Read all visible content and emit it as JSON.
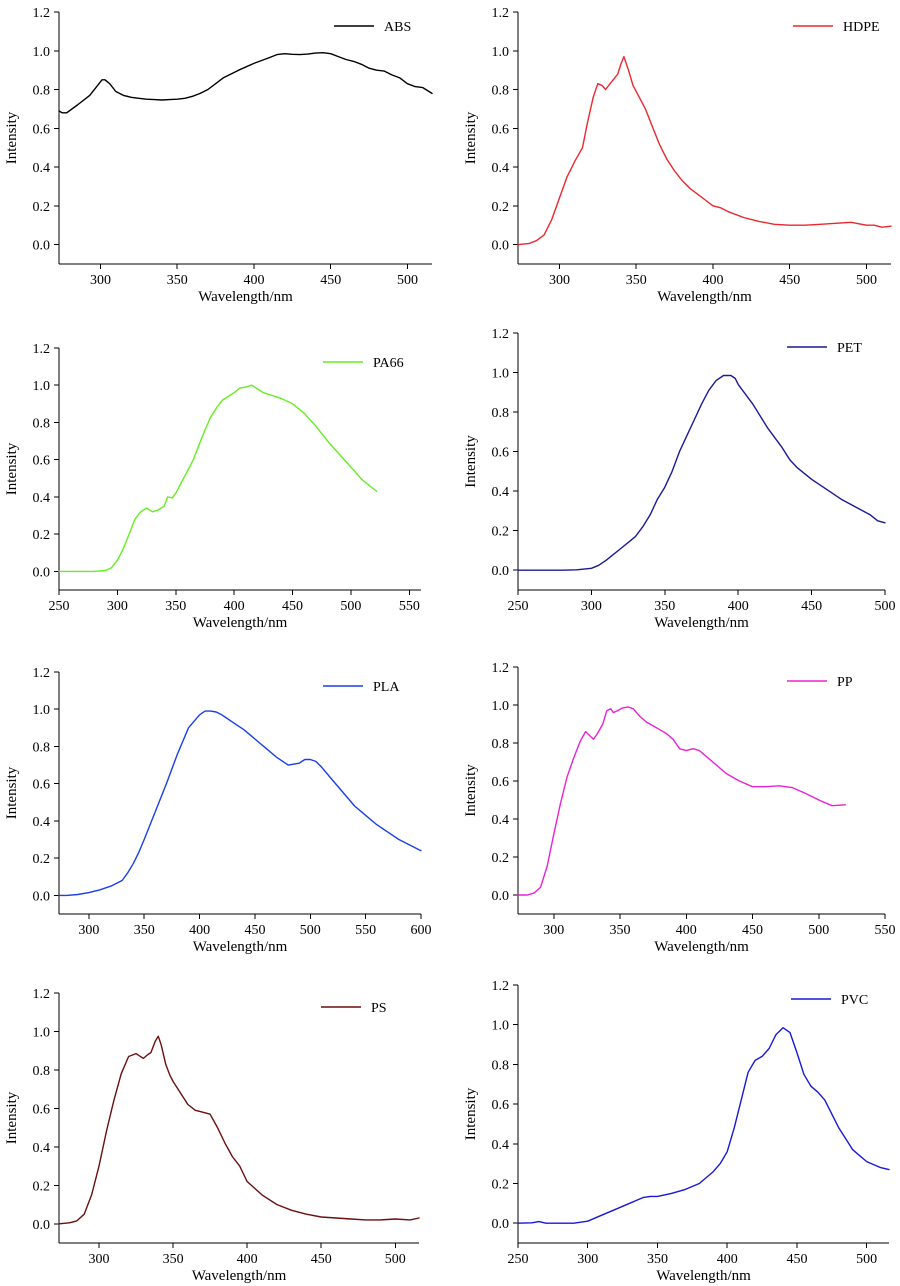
{
  "chart_data": [
    {
      "type": "line",
      "xlabel": "Wavelength/nm",
      "ylabel": "Intensity",
      "xlim": [
        273,
        516
      ],
      "ylim": [
        -0.1,
        1.2
      ],
      "xticks": [
        300,
        350,
        400,
        450,
        500
      ],
      "yticks": [
        0.0,
        0.2,
        0.4,
        0.6,
        0.8,
        1.0,
        1.2
      ],
      "ytick_labels": [
        "0.0",
        "0.2",
        "0.4",
        "0.6",
        "0.8",
        "1.0",
        "1.2"
      ],
      "grid": false,
      "legend_position": "top-right",
      "series": [
        {
          "name": "ABS",
          "color": "#000000",
          "x": [
            273,
            275,
            278,
            285,
            293,
            298,
            301,
            303,
            306,
            310,
            315,
            320,
            325,
            330,
            335,
            340,
            345,
            350,
            355,
            360,
            365,
            370,
            375,
            380,
            390,
            400,
            410,
            415,
            420,
            425,
            430,
            435,
            440,
            445,
            450,
            455,
            460,
            465,
            470,
            475,
            480,
            485,
            490,
            495,
            500,
            505,
            510,
            516
          ],
          "y": [
            0.69,
            0.68,
            0.68,
            0.72,
            0.77,
            0.82,
            0.85,
            0.85,
            0.83,
            0.79,
            0.77,
            0.76,
            0.755,
            0.75,
            0.748,
            0.746,
            0.748,
            0.75,
            0.755,
            0.765,
            0.78,
            0.8,
            0.83,
            0.86,
            0.9,
            0.935,
            0.965,
            0.98,
            0.985,
            0.982,
            0.98,
            0.983,
            0.988,
            0.99,
            0.985,
            0.97,
            0.955,
            0.945,
            0.93,
            0.91,
            0.9,
            0.895,
            0.875,
            0.86,
            0.83,
            0.815,
            0.81,
            0.78
          ]
        }
      ]
    },
    {
      "type": "line",
      "xlabel": "Wavelength/nm",
      "ylabel": "Intensity",
      "xlim": [
        273,
        516
      ],
      "ylim": [
        -0.1,
        1.2
      ],
      "xticks": [
        300,
        350,
        400,
        450,
        500
      ],
      "yticks": [
        0.0,
        0.2,
        0.4,
        0.6,
        0.8,
        1.0,
        1.2
      ],
      "ytick_labels": [
        "0.0",
        "0.2",
        "0.4",
        "0.6",
        "0.8",
        "1.0",
        "1.2"
      ],
      "grid": false,
      "legend_position": "top-right",
      "series": [
        {
          "name": "HDPE",
          "color": "#e8282f",
          "x": [
            273,
            280,
            285,
            290,
            295,
            300,
            305,
            310,
            315,
            318,
            322,
            325,
            328,
            330,
            333,
            336,
            338,
            340,
            342,
            345,
            348,
            352,
            356,
            360,
            365,
            370,
            375,
            380,
            385,
            390,
            395,
            400,
            405,
            410,
            420,
            430,
            440,
            450,
            460,
            470,
            480,
            490,
            500,
            505,
            510,
            516
          ],
          "y": [
            0.0,
            0.005,
            0.02,
            0.05,
            0.13,
            0.24,
            0.35,
            0.43,
            0.5,
            0.62,
            0.76,
            0.83,
            0.82,
            0.8,
            0.83,
            0.86,
            0.88,
            0.93,
            0.97,
            0.9,
            0.82,
            0.76,
            0.7,
            0.62,
            0.52,
            0.44,
            0.38,
            0.33,
            0.29,
            0.26,
            0.23,
            0.2,
            0.19,
            0.17,
            0.14,
            0.12,
            0.105,
            0.1,
            0.1,
            0.105,
            0.11,
            0.115,
            0.1,
            0.1,
            0.09,
            0.095
          ]
        }
      ]
    },
    {
      "type": "line",
      "xlabel": "Wavelength/nm",
      "ylabel": "Intensity",
      "xlim": [
        250,
        560
      ],
      "ylim": [
        -0.1,
        1.2
      ],
      "xticks": [
        250,
        300,
        350,
        400,
        450,
        500,
        550
      ],
      "yticks": [
        0.0,
        0.2,
        0.4,
        0.6,
        0.8,
        1.0,
        1.2
      ],
      "ytick_labels": [
        "0.0",
        "0.2",
        "0.4",
        "0.6",
        "0.8",
        "1.0",
        "1.2"
      ],
      "grid": false,
      "legend_position": "top-right",
      "series": [
        {
          "name": "PA66",
          "color": "#66ee22",
          "x": [
            250,
            260,
            270,
            280,
            290,
            295,
            300,
            305,
            310,
            315,
            320,
            325,
            330,
            335,
            340,
            343,
            347,
            350,
            355,
            360,
            365,
            370,
            375,
            380,
            385,
            390,
            395,
            400,
            405,
            410,
            415,
            420,
            425,
            430,
            440,
            450,
            460,
            470,
            480,
            490,
            500,
            510,
            520,
            522
          ],
          "y": [
            0.0,
            0.0,
            0.0,
            0.0,
            0.005,
            0.02,
            0.06,
            0.12,
            0.2,
            0.28,
            0.32,
            0.34,
            0.32,
            0.33,
            0.35,
            0.4,
            0.395,
            0.42,
            0.48,
            0.54,
            0.6,
            0.68,
            0.76,
            0.83,
            0.88,
            0.92,
            0.94,
            0.96,
            0.985,
            0.99,
            1.0,
            0.98,
            0.96,
            0.95,
            0.93,
            0.9,
            0.85,
            0.78,
            0.7,
            0.63,
            0.56,
            0.49,
            0.44,
            0.43
          ]
        }
      ]
    },
    {
      "type": "line",
      "xlabel": "Wavelength/nm",
      "ylabel": "Intensity",
      "xlim": [
        250,
        500
      ],
      "ylim": [
        -0.1,
        1.2
      ],
      "xticks": [
        250,
        300,
        350,
        400,
        450,
        500
      ],
      "yticks": [
        0.0,
        0.2,
        0.4,
        0.6,
        0.8,
        1.0,
        1.2
      ],
      "ytick_labels": [
        "0.0",
        "0.2",
        "0.4",
        "0.6",
        "0.8",
        "1.0",
        "1.2"
      ],
      "grid": false,
      "legend_position": "top-right",
      "series": [
        {
          "name": "PET",
          "color": "#1a1a99",
          "x": [
            250,
            260,
            270,
            280,
            290,
            300,
            305,
            310,
            315,
            320,
            325,
            330,
            335,
            340,
            345,
            350,
            355,
            360,
            365,
            370,
            375,
            380,
            385,
            390,
            395,
            398,
            400,
            405,
            410,
            415,
            420,
            425,
            430,
            435,
            440,
            450,
            460,
            470,
            480,
            490,
            495,
            500
          ],
          "y": [
            0.0,
            0.0,
            0.0,
            0.0,
            0.002,
            0.01,
            0.025,
            0.05,
            0.08,
            0.11,
            0.14,
            0.17,
            0.22,
            0.28,
            0.36,
            0.42,
            0.5,
            0.6,
            0.68,
            0.76,
            0.84,
            0.91,
            0.96,
            0.985,
            0.985,
            0.97,
            0.94,
            0.89,
            0.84,
            0.78,
            0.72,
            0.67,
            0.62,
            0.56,
            0.52,
            0.46,
            0.41,
            0.36,
            0.32,
            0.28,
            0.25,
            0.24
          ]
        }
      ]
    },
    {
      "type": "line",
      "xlabel": "Wavelength/nm",
      "ylabel": "Intensity",
      "xlim": [
        273,
        600
      ],
      "ylim": [
        -0.1,
        1.2
      ],
      "xticks": [
        300,
        350,
        400,
        450,
        500,
        550,
        600
      ],
      "yticks": [
        0.0,
        0.2,
        0.4,
        0.6,
        0.8,
        1.0,
        1.2
      ],
      "ytick_labels": [
        "0.0",
        "0.2",
        "0.4",
        "0.6",
        "0.8",
        "1.0",
        "1.2"
      ],
      "grid": false,
      "legend_position": "top-right",
      "series": [
        {
          "name": "PLA",
          "color": "#1a3ee8",
          "x": [
            273,
            280,
            290,
            300,
            310,
            320,
            330,
            335,
            340,
            345,
            350,
            360,
            370,
            380,
            390,
            400,
            405,
            410,
            415,
            420,
            425,
            430,
            440,
            450,
            460,
            470,
            480,
            490,
            495,
            500,
            505,
            510,
            520,
            530,
            540,
            550,
            560,
            570,
            580,
            590,
            600
          ],
          "y": [
            0.0,
            0.0,
            0.005,
            0.015,
            0.03,
            0.05,
            0.08,
            0.12,
            0.17,
            0.23,
            0.3,
            0.45,
            0.6,
            0.76,
            0.9,
            0.97,
            0.99,
            0.99,
            0.985,
            0.97,
            0.95,
            0.93,
            0.89,
            0.84,
            0.79,
            0.74,
            0.7,
            0.71,
            0.73,
            0.73,
            0.72,
            0.69,
            0.62,
            0.55,
            0.48,
            0.43,
            0.38,
            0.34,
            0.3,
            0.27,
            0.24
          ]
        }
      ]
    },
    {
      "type": "line",
      "xlabel": "Wavelength/nm",
      "ylabel": "Intensity",
      "xlim": [
        273,
        550
      ],
      "ylim": [
        -0.1,
        1.2
      ],
      "xticks": [
        300,
        350,
        400,
        450,
        500,
        550
      ],
      "yticks": [
        0.0,
        0.2,
        0.4,
        0.6,
        0.8,
        1.0,
        1.2
      ],
      "ytick_labels": [
        "0.0",
        "0.2",
        "0.4",
        "0.6",
        "0.8",
        "1.0",
        "1.2"
      ],
      "grid": false,
      "legend_position": "top-right",
      "series": [
        {
          "name": "PP",
          "color": "#e822d8",
          "x": [
            273,
            280,
            285,
            290,
            295,
            300,
            305,
            310,
            315,
            320,
            324,
            327,
            330,
            333,
            337,
            340,
            343,
            345,
            348,
            352,
            356,
            360,
            365,
            370,
            375,
            380,
            385,
            390,
            395,
            400,
            405,
            410,
            415,
            420,
            430,
            440,
            450,
            460,
            470,
            480,
            490,
            500,
            510,
            520
          ],
          "y": [
            0.0,
            0.0,
            0.01,
            0.04,
            0.15,
            0.32,
            0.48,
            0.62,
            0.72,
            0.81,
            0.86,
            0.84,
            0.82,
            0.85,
            0.9,
            0.97,
            0.98,
            0.96,
            0.97,
            0.985,
            0.99,
            0.98,
            0.94,
            0.91,
            0.89,
            0.87,
            0.85,
            0.82,
            0.77,
            0.76,
            0.77,
            0.76,
            0.73,
            0.7,
            0.64,
            0.6,
            0.57,
            0.57,
            0.575,
            0.565,
            0.535,
            0.5,
            0.47,
            0.475
          ]
        }
      ]
    },
    {
      "type": "line",
      "xlabel": "Wavelength/nm",
      "ylabel": "Intensity",
      "xlim": [
        273,
        516
      ],
      "ylim": [
        -0.1,
        1.2
      ],
      "xticks": [
        300,
        350,
        400,
        450,
        500
      ],
      "yticks": [
        0.0,
        0.2,
        0.4,
        0.6,
        0.8,
        1.0,
        1.2
      ],
      "ytick_labels": [
        "0.0",
        "0.2",
        "0.4",
        "0.6",
        "0.8",
        "1.0",
        "1.2"
      ],
      "grid": false,
      "legend_position": "top-right",
      "series": [
        {
          "name": "PS",
          "color": "#6b0f10",
          "x": [
            273,
            280,
            285,
            290,
            295,
            300,
            305,
            310,
            315,
            320,
            325,
            330,
            333,
            335,
            338,
            340,
            342,
            345,
            348,
            350,
            355,
            360,
            365,
            370,
            375,
            380,
            385,
            390,
            395,
            400,
            410,
            420,
            430,
            440,
            450,
            460,
            470,
            480,
            490,
            500,
            510,
            516
          ],
          "y": [
            0.0,
            0.005,
            0.015,
            0.05,
            0.15,
            0.3,
            0.48,
            0.64,
            0.78,
            0.87,
            0.885,
            0.86,
            0.88,
            0.89,
            0.95,
            0.975,
            0.93,
            0.83,
            0.77,
            0.74,
            0.68,
            0.62,
            0.59,
            0.58,
            0.57,
            0.5,
            0.42,
            0.35,
            0.3,
            0.22,
            0.15,
            0.1,
            0.07,
            0.05,
            0.035,
            0.03,
            0.025,
            0.02,
            0.02,
            0.025,
            0.02,
            0.03
          ]
        }
      ]
    },
    {
      "type": "line",
      "xlabel": "Wavelength/nm",
      "ylabel": "Intensity",
      "xlim": [
        250,
        516
      ],
      "ylim": [
        -0.1,
        1.2
      ],
      "xticks": [
        250,
        300,
        350,
        400,
        450,
        500
      ],
      "yticks": [
        0.0,
        0.2,
        0.4,
        0.6,
        0.8,
        1.0,
        1.2
      ],
      "ytick_labels": [
        "0.0",
        "0.2",
        "0.4",
        "0.6",
        "0.8",
        "1.0",
        "1.2"
      ],
      "grid": false,
      "legend_position": "top-right",
      "series": [
        {
          "name": "PVC",
          "color": "#1818d8",
          "x": [
            250,
            260,
            265,
            270,
            280,
            290,
            300,
            310,
            320,
            330,
            340,
            345,
            350,
            360,
            370,
            380,
            390,
            395,
            400,
            405,
            410,
            415,
            420,
            425,
            430,
            435,
            440,
            445,
            450,
            455,
            460,
            465,
            470,
            480,
            490,
            500,
            510,
            516
          ],
          "y": [
            0.0,
            0.002,
            0.008,
            0.0,
            0.0,
            0.0,
            0.01,
            0.04,
            0.07,
            0.1,
            0.13,
            0.135,
            0.135,
            0.15,
            0.17,
            0.2,
            0.26,
            0.3,
            0.36,
            0.48,
            0.62,
            0.76,
            0.82,
            0.84,
            0.88,
            0.95,
            0.985,
            0.96,
            0.86,
            0.75,
            0.69,
            0.66,
            0.62,
            0.48,
            0.37,
            0.31,
            0.28,
            0.27
          ]
        }
      ]
    }
  ]
}
